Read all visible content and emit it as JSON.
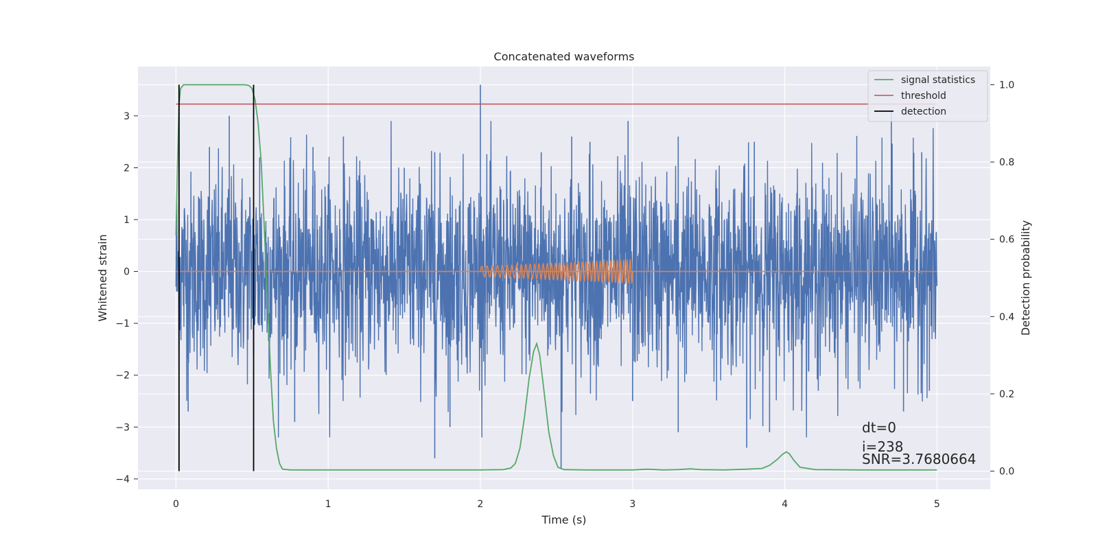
{
  "chart_data": {
    "type": "line",
    "title": "Concatenated waveforms",
    "xlabel": "Time (s)",
    "ylabel": "Whitened strain",
    "y2label": "Detection probability",
    "xlim": [
      -0.25,
      5.35
    ],
    "ylim": [
      -4.2,
      3.95
    ],
    "y2lim": [
      -0.047,
      1.047
    ],
    "xticks": [
      0,
      1,
      2,
      3,
      4,
      5
    ],
    "xtick_labels": [
      "0",
      "1",
      "2",
      "3",
      "4",
      "5"
    ],
    "yticks": [
      -4,
      -3,
      -2,
      -1,
      0,
      1,
      2,
      3
    ],
    "ytick_labels": [
      "−4",
      "−3",
      "−2",
      "−1",
      "0",
      "1",
      "2",
      "3"
    ],
    "y2ticks": [
      0.0,
      0.2,
      0.4,
      0.6,
      0.8,
      1.0
    ],
    "y2tick_labels": [
      "0.0",
      "0.2",
      "0.4",
      "0.6",
      "0.8",
      "1.0"
    ],
    "grid": true,
    "legend_position": "top-right",
    "legend": [
      "signal statistics",
      "threshold",
      "detection"
    ],
    "colors": {
      "noise": "#4c72b0",
      "waveform": "#dd8452",
      "signal_statistics": "#55a868",
      "threshold": "#c44e52",
      "detection": "#000000",
      "plot_bg": "#eaeaf2",
      "grid": "#ffffff"
    },
    "series": [
      {
        "name": "signal statistics",
        "axis": "right",
        "x": [
          0.0,
          0.01,
          0.02,
          0.03,
          0.05,
          0.08,
          0.12,
          0.2,
          0.3,
          0.4,
          0.45,
          0.48,
          0.5,
          0.52,
          0.54,
          0.56,
          0.58,
          0.6,
          0.62,
          0.64,
          0.66,
          0.68,
          0.7,
          0.75,
          1.0,
          1.35,
          1.7,
          2.0,
          2.15,
          2.2,
          2.23,
          2.26,
          2.29,
          2.32,
          2.35,
          2.37,
          2.39,
          2.42,
          2.45,
          2.48,
          2.51,
          2.55,
          2.7,
          3.0,
          3.1,
          3.2,
          3.3,
          3.38,
          3.45,
          3.6,
          3.75,
          3.85,
          3.9,
          3.95,
          3.98,
          4.01,
          4.03,
          4.06,
          4.1,
          4.2,
          4.5,
          4.75,
          5.0
        ],
        "y": [
          0.61,
          0.8,
          0.95,
          0.99,
          1.0,
          1.0,
          1.0,
          1.0,
          1.0,
          1.0,
          1.0,
          0.998,
          0.99,
          0.96,
          0.9,
          0.8,
          0.63,
          0.45,
          0.27,
          0.13,
          0.06,
          0.02,
          0.005,
          0.003,
          0.003,
          0.003,
          0.003,
          0.003,
          0.004,
          0.008,
          0.02,
          0.06,
          0.14,
          0.24,
          0.31,
          0.33,
          0.3,
          0.2,
          0.1,
          0.04,
          0.01,
          0.004,
          0.003,
          0.003,
          0.005,
          0.003,
          0.004,
          0.006,
          0.004,
          0.003,
          0.005,
          0.007,
          0.015,
          0.03,
          0.042,
          0.05,
          0.045,
          0.028,
          0.01,
          0.004,
          0.003,
          0.003,
          0.003
        ]
      },
      {
        "name": "threshold",
        "axis": "right",
        "x": [
          0.0,
          5.0
        ],
        "y": [
          0.95,
          0.95
        ]
      },
      {
        "name": "detection",
        "axis": "right",
        "x": [
          0.02,
          0.51
        ],
        "y": [
          0.0,
          1.0
        ]
      }
    ],
    "noise_peaks": [
      {
        "x": 0.22,
        "y": 2.4
      },
      {
        "x": 0.55,
        "y": 2.2
      },
      {
        "x": 0.35,
        "y": 3.0
      },
      {
        "x": 0.9,
        "y": 2.4
      },
      {
        "x": 1.1,
        "y": 2.6
      },
      {
        "x": 1.5,
        "y": 2.0
      },
      {
        "x": 1.7,
        "y": 2.3
      },
      {
        "x": 2.0,
        "y": 3.6
      },
      {
        "x": 2.4,
        "y": 2.3
      },
      {
        "x": 2.6,
        "y": 2.6
      },
      {
        "x": 2.72,
        "y": 2.5
      },
      {
        "x": 2.97,
        "y": 2.9
      },
      {
        "x": 3.3,
        "y": 2.6
      },
      {
        "x": 3.8,
        "y": 2.5
      },
      {
        "x": 4.7,
        "y": 3.1
      },
      {
        "x": 4.9,
        "y": 2.3
      },
      {
        "x": 0.08,
        "y": -2.7
      },
      {
        "x": 0.78,
        "y": -2.9
      },
      {
        "x": 1.7,
        "y": -3.6
      },
      {
        "x": 1.8,
        "y": -3.0
      },
      {
        "x": 2.53,
        "y": -3.8
      },
      {
        "x": 3.0,
        "y": -2.5
      },
      {
        "x": 3.3,
        "y": -3.1
      },
      {
        "x": 3.75,
        "y": -3.4
      },
      {
        "x": 3.9,
        "y": -3.1
      },
      {
        "x": 4.22,
        "y": -2.3
      },
      {
        "x": 4.78,
        "y": -2.7
      },
      {
        "x": 4.95,
        "y": -2.3
      }
    ],
    "injected_waveform": {
      "x_start": 2.0,
      "x_end": 3.0,
      "amplitude_start": 0.1,
      "amplitude_end": 0.22
    },
    "annotations": [
      "dt=0",
      "i=238",
      "SNR=3.7680664"
    ]
  }
}
